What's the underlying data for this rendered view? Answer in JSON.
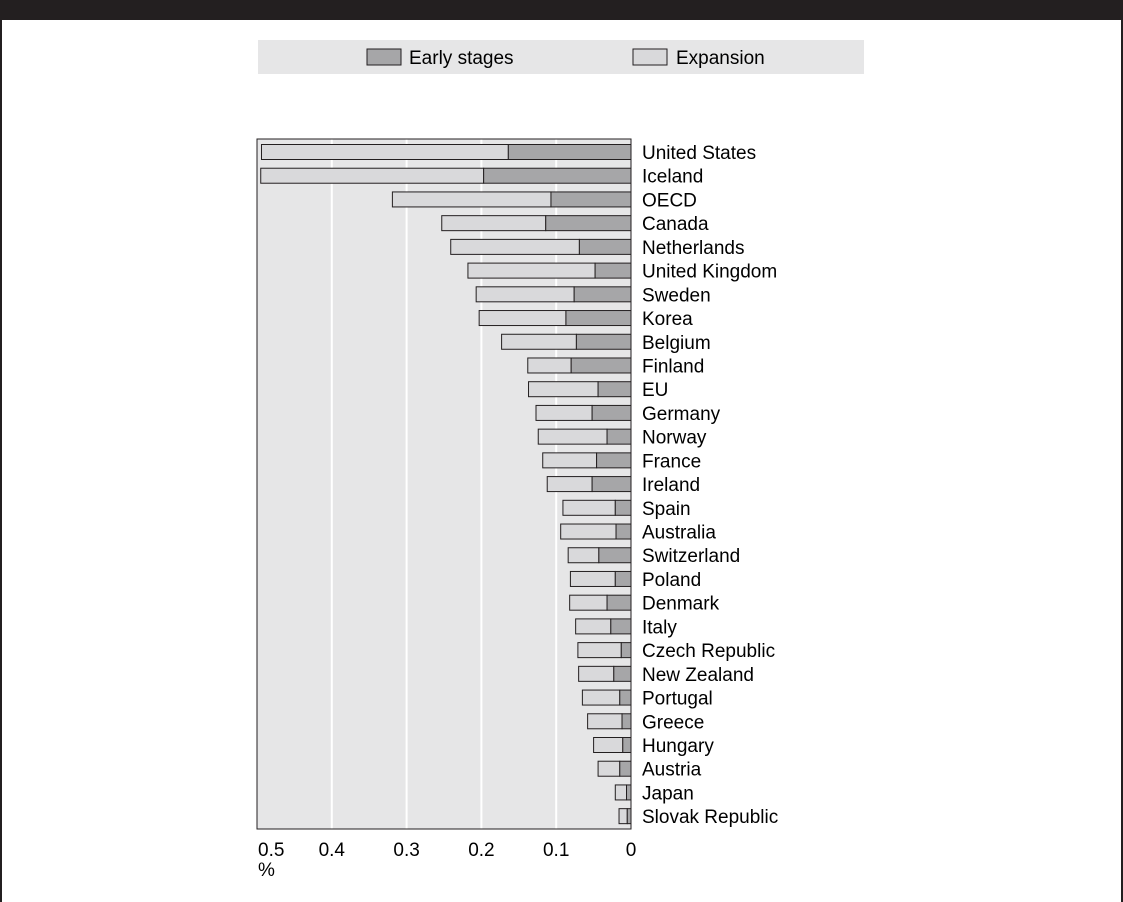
{
  "chart_data": {
    "type": "bar",
    "orientation": "horizontal",
    "stacked": true,
    "x_reversed": true,
    "unit_label": "%",
    "xlim": [
      0,
      0.5
    ],
    "xticks": [
      0.5,
      0.4,
      0.3,
      0.2,
      0.1,
      0
    ],
    "xtick_labels": [
      "0.5",
      "0.4",
      "0.3",
      "0.2",
      "0.1",
      "0"
    ],
    "grid": true,
    "legend_position": "top",
    "colors": {
      "early": "#a6a6a8",
      "expansion": "#d9d9db",
      "plot_bg": "#e6e6e7",
      "legend_bg": "#e6e6e7",
      "frame": "#231f20"
    },
    "categories": [
      "United States",
      "Iceland",
      "OECD",
      "Canada",
      "Netherlands",
      "United Kingdom",
      "Sweden",
      "Korea",
      "Belgium",
      "Finland",
      "EU",
      "Germany",
      "Norway",
      "France",
      "Ireland",
      "Spain",
      "Australia",
      "Switzerland",
      "Poland",
      "Denmark",
      "Italy",
      "Czech Republic",
      "New Zealand",
      "Portugal",
      "Greece",
      "Hungary",
      "Austria",
      "Japan",
      "Slovak Republic"
    ],
    "series": [
      {
        "name": "Early stages",
        "values": [
          0.164,
          0.197,
          0.107,
          0.114,
          0.069,
          0.048,
          0.076,
          0.087,
          0.073,
          0.08,
          0.044,
          0.052,
          0.032,
          0.046,
          0.052,
          0.021,
          0.02,
          0.043,
          0.021,
          0.032,
          0.027,
          0.013,
          0.023,
          0.015,
          0.012,
          0.011,
          0.015,
          0.006,
          0.005
        ]
      },
      {
        "name": "Expansion",
        "values": [
          0.33,
          0.298,
          0.212,
          0.139,
          0.172,
          0.17,
          0.131,
          0.116,
          0.1,
          0.058,
          0.093,
          0.075,
          0.092,
          0.072,
          0.06,
          0.07,
          0.074,
          0.041,
          0.06,
          0.05,
          0.047,
          0.058,
          0.047,
          0.05,
          0.046,
          0.039,
          0.029,
          0.015,
          0.011
        ]
      }
    ]
  }
}
